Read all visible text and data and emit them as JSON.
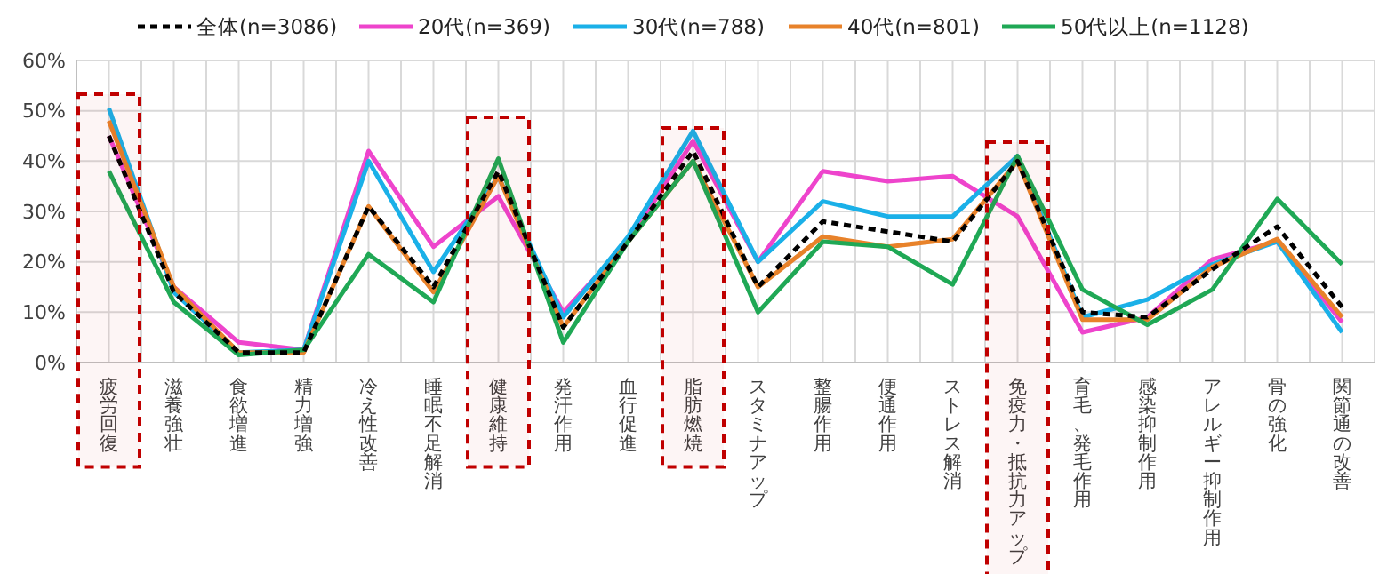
{
  "chart_data": {
    "type": "line",
    "categories": [
      "疲労回復",
      "滋養強壮",
      "食欲増進",
      "精力増強",
      "冷え性改善",
      "睡眠不足解消",
      "健康維持",
      "発汗作用",
      "血行促進",
      "脂肪燃焼",
      "スタミナアップ",
      "整腸作用",
      "便通作用",
      "ストレス解消",
      "免疫力・抵抗力アップ",
      "育毛、発毛作用",
      "感染抑制作用",
      "アレルギー抑制作用",
      "骨の強化",
      "関節通の改善"
    ],
    "series": [
      {
        "name": "全体(n=3086)",
        "color": "#000000",
        "line_style": "dashed",
        "values": [
          45,
          14,
          2,
          2,
          31,
          15,
          38,
          7,
          24,
          42,
          15,
          28,
          26,
          24,
          40,
          10,
          9,
          18.5,
          27,
          11
        ]
      },
      {
        "name": "20代(n=369)",
        "color": "#ee44cc",
        "values": [
          45,
          15,
          4,
          2.5,
          42,
          23,
          33,
          10,
          24,
          44,
          20,
          38,
          36,
          37,
          29,
          6,
          9,
          20.5,
          24,
          8
        ]
      },
      {
        "name": "30代(n=788)",
        "color": "#1ab0e8",
        "values": [
          50.5,
          14,
          2,
          2.5,
          40,
          18,
          37,
          9,
          25,
          46,
          20,
          32,
          29,
          29,
          41,
          9,
          12.5,
          19.5,
          24,
          6
        ]
      },
      {
        "name": "40代(n=801)",
        "color": "#e8822a",
        "values": [
          48,
          15,
          2,
          2,
          31,
          14,
          37,
          7,
          24,
          40,
          15,
          25,
          23,
          24.5,
          40,
          8.5,
          8.5,
          19,
          24.5,
          9
        ]
      },
      {
        "name": "50代以上(n=1128)",
        "color": "#1fa855",
        "values": [
          38,
          12,
          1.5,
          2.5,
          21.5,
          12,
          40.5,
          4,
          24,
          40,
          10,
          24,
          23,
          15.5,
          41,
          14.5,
          7.5,
          14.5,
          32.5,
          19.5
        ]
      }
    ],
    "ylim": [
      0,
      60
    ],
    "yticks": [
      {
        "value": 0,
        "label": "0%"
      },
      {
        "value": 10,
        "label": "10%"
      },
      {
        "value": 20,
        "label": "20%"
      },
      {
        "value": 30,
        "label": "30%"
      },
      {
        "value": 40,
        "label": "40%"
      },
      {
        "value": 50,
        "label": "50%"
      },
      {
        "value": 60,
        "label": "60%"
      }
    ],
    "grid": true,
    "legend": "top",
    "line_style": "solid",
    "marker": "none",
    "bands": [
      {
        "axis": "x",
        "from": "疲労回復",
        "to": "疲労回復",
        "color": "#c00000"
      },
      {
        "axis": "x",
        "from": "健康維持",
        "to": "健康維持",
        "color": "#c00000"
      },
      {
        "axis": "x",
        "from": "脂肪燃焼",
        "to": "脂肪燃焼",
        "color": "#c00000"
      },
      {
        "axis": "x",
        "from": "免疫力・抵抗力アップ",
        "to": "免疫力・抵抗力アップ",
        "color": "#c00000"
      }
    ]
  }
}
